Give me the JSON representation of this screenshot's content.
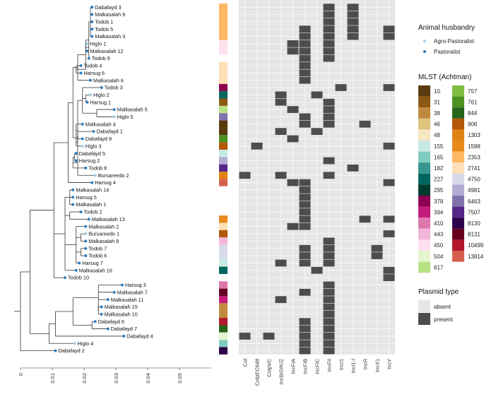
{
  "chart_data": {
    "type": "heatmap",
    "description_tree": "phylogenetic tree with tip labels",
    "tree_axis": {
      "ticks": [
        "0",
        "0.01",
        "0.02",
        "0.03",
        "0.04",
        "0.05"
      ],
      "range": [
        0,
        0.06
      ]
    },
    "taxa": [
      {
        "name": "Dabafayd 3",
        "group": "Pastoralist",
        "mlst": "2353",
        "x": 0.0225,
        "plasmids": [
          "IncFII",
          "IncI1-I"
        ]
      },
      {
        "name": "Malkasalah 9",
        "group": "Pastoralist",
        "mlst": "2353",
        "x": 0.0225,
        "plasmids": [
          "IncFII",
          "IncI1-I"
        ]
      },
      {
        "name": "Todob 1",
        "group": "Pastoralist",
        "mlst": "2353",
        "x": 0.0225,
        "plasmids": [
          "IncFII",
          "IncI1-I"
        ]
      },
      {
        "name": "Todob 5",
        "group": "Pastoralist",
        "mlst": "2353",
        "x": 0.0225,
        "plasmids": [
          "IncFIB",
          "IncFII",
          "IncI1-I",
          "IncY"
        ]
      },
      {
        "name": "Malkasalah 3",
        "group": "Pastoralist",
        "mlst": "2353",
        "x": 0.0225,
        "plasmids": [
          "IncFIB",
          "IncFII",
          "IncI1-I",
          "IncY"
        ]
      },
      {
        "name": "Higlo 1",
        "group": "Agro-Pastoralist",
        "mlst": "450",
        "x": 0.021,
        "plasmids": [
          "IncFIA",
          "IncFIB",
          "IncFII"
        ]
      },
      {
        "name": "Malkasalah 12",
        "group": "Pastoralist",
        "mlst": "450",
        "x": 0.021,
        "plasmids": [
          "IncFIA",
          "IncFIB",
          "IncFII"
        ]
      },
      {
        "name": "Todob 9",
        "group": "Pastoralist",
        "mlst": "",
        "x": 0.0215,
        "plasmids": [
          "IncFIB",
          "IncFII"
        ]
      },
      {
        "name": "Todob 4",
        "group": "Pastoralist",
        "mlst": "2741",
        "x": 0.019,
        "plasmids": [
          "IncFIB"
        ]
      },
      {
        "name": "Harsug 6",
        "group": "Pastoralist",
        "mlst": "2741",
        "x": 0.019,
        "plasmids": [
          "IncFIB"
        ]
      },
      {
        "name": "Malkasalah 6",
        "group": "Pastoralist",
        "mlst": "2741",
        "x": 0.022,
        "plasmids": [
          "IncFIB"
        ]
      },
      {
        "name": "Todob 3",
        "group": "Pastoralist",
        "mlst": "378",
        "x": 0.0255,
        "plasmids": [
          "IncI1",
          "IncY"
        ]
      },
      {
        "name": "Higlo 2",
        "group": "Agro-Pastoralist",
        "mlst": "227",
        "x": 0.022,
        "plasmids": [
          "IncB/O/K/Z",
          "IncFIC"
        ]
      },
      {
        "name": "Harsug 1",
        "group": "Pastoralist",
        "mlst": "31",
        "x": 0.021,
        "plasmids": [
          "IncB/O/K/Z",
          "IncFII"
        ]
      },
      {
        "name": "Malkasalah 5",
        "group": "Pastoralist",
        "mlst": "617",
        "x": 0.0295,
        "plasmids": [
          "IncFIA",
          "IncFII"
        ]
      },
      {
        "name": "Higlo 5",
        "group": "Agro-Pastoralist",
        "mlst": "6463",
        "x": 0.0295,
        "plasmids": [
          "IncFIB",
          "IncFII"
        ]
      },
      {
        "name": "Malkasalah 4",
        "group": "Pastoralist",
        "mlst": "10",
        "x": 0.0195,
        "plasmids": [
          "IncFIB",
          "IncFII",
          "IncR"
        ]
      },
      {
        "name": "Dabafayd 1",
        "group": "Pastoralist",
        "mlst": "10",
        "x": 0.023,
        "plasmids": [
          "IncB/O/K/Z",
          "IncFIC"
        ]
      },
      {
        "name": "Dabafayd 8",
        "group": "Pastoralist",
        "mlst": "761",
        "x": 0.0195,
        "plasmids": [
          "IncFIA"
        ]
      },
      {
        "name": "Higlo 3",
        "group": "Agro-Pastoralist",
        "mlst": "906",
        "x": 0.0195,
        "plasmids": [
          "ColpEC648",
          "IncY"
        ]
      },
      {
        "name": "Dabafayd 5",
        "group": "Pastoralist",
        "mlst": "155",
        "x": 0.0175,
        "plasmids": []
      },
      {
        "name": "Harsug 2",
        "group": "Pastoralist",
        "mlst": "4981",
        "x": 0.0175,
        "plasmids": [
          "IncFII"
        ]
      },
      {
        "name": "Todob 8",
        "group": "Pastoralist",
        "mlst": "7507",
        "x": 0.0205,
        "plasmids": [
          "IncI1-I"
        ]
      },
      {
        "name": "Bursareedo 2",
        "group": "Agro-Pastoralist",
        "mlst": "1303",
        "x": 0.0235,
        "plasmids": [
          "Col",
          "IncB/O/K/Z",
          "IncFII"
        ]
      },
      {
        "name": "Harsug 4",
        "group": "Pastoralist",
        "mlst": "13814",
        "x": 0.0225,
        "plasmids": [
          "IncFIA",
          "IncFIB",
          "IncY"
        ]
      },
      {
        "name": "Malkasalah 14",
        "group": "Pastoralist",
        "mlst": "",
        "x": 0.0165,
        "plasmids": [
          "IncFIB"
        ]
      },
      {
        "name": "Harsug 5",
        "group": "Pastoralist",
        "mlst": "",
        "x": 0.0165,
        "plasmids": [
          "IncFIB"
        ]
      },
      {
        "name": "Malkasalah 1",
        "group": "Pastoralist",
        "mlst": "",
        "x": 0.0165,
        "plasmids": [
          "IncFIB"
        ]
      },
      {
        "name": "Todob 2",
        "group": "Pastoralist",
        "mlst": "",
        "x": 0.019,
        "plasmids": [
          "IncFIB"
        ]
      },
      {
        "name": "Malkasalah 13",
        "group": "Pastoralist",
        "mlst": "1598",
        "x": 0.0215,
        "plasmids": [
          "IncFIB",
          "IncR",
          "IncY"
        ]
      },
      {
        "name": "Malkasalah 2",
        "group": "Pastoralist",
        "mlst": "2741",
        "x": 0.0205,
        "plasmids": [
          "IncFIA",
          "IncFIB"
        ]
      },
      {
        "name": "Bursareedo 1",
        "group": "Agro-Pastoralist",
        "mlst": "906",
        "x": 0.0205,
        "plasmids": [
          "IncY"
        ]
      },
      {
        "name": "Malkasalah 8",
        "group": "Pastoralist",
        "mlst": "443",
        "x": 0.0205,
        "plasmids": [
          "IncFII"
        ]
      },
      {
        "name": "Todob 7",
        "group": "Pastoralist",
        "mlst": "4750",
        "x": 0.0205,
        "plasmids": [
          "IncFIB",
          "IncFII",
          "IncX1"
        ]
      },
      {
        "name": "Todob 6",
        "group": "Pastoralist",
        "mlst": "4750",
        "x": 0.0205,
        "plasmids": [
          "IncFIB",
          "IncFII",
          "IncX1"
        ]
      },
      {
        "name": "Harsug 7",
        "group": "Pastoralist",
        "mlst": "155",
        "x": 0.0185,
        "plasmids": [
          "IncB/O/K/Z",
          "IncFIB",
          "IncFII"
        ]
      },
      {
        "name": "Malkasalah 16",
        "group": "Pastoralist",
        "mlst": "227",
        "x": 0.0175,
        "plasmids": [
          "IncFIC",
          "IncY"
        ]
      },
      {
        "name": "Todob 10",
        "group": "Pastoralist",
        "mlst": "",
        "x": 0.014,
        "plasmids": [
          "IncY"
        ]
      },
      {
        "name": "Harsug 3",
        "group": "Pastoralist",
        "mlst": "410",
        "x": 0.032,
        "plasmids": [
          "IncFII"
        ]
      },
      {
        "name": "Malkasalah 7",
        "group": "Pastoralist",
        "mlst": "8131",
        "x": 0.0295,
        "plasmids": [
          "IncFIB",
          "IncFII"
        ]
      },
      {
        "name": "Malkasalah 11",
        "group": "Pastoralist",
        "mlst": "394",
        "x": 0.0275,
        "plasmids": [
          "IncB/O/K/Z",
          "IncFII"
        ]
      },
      {
        "name": "Malkasalah 15",
        "group": "Pastoralist",
        "mlst": "38",
        "x": 0.0255,
        "plasmids": [
          "IncFII"
        ]
      },
      {
        "name": "Malkasalah 10",
        "group": "Pastoralist",
        "mlst": "38",
        "x": 0.0255,
        "plasmids": [
          "IncFII"
        ]
      },
      {
        "name": "Dabafayd 6",
        "group": "Pastoralist",
        "mlst": "10499",
        "x": 0.0235,
        "plasmids": [
          "IncFIB",
          "IncFII"
        ]
      },
      {
        "name": "Dabafayd 7",
        "group": "Pastoralist",
        "mlst": "844",
        "x": 0.0275,
        "plasmids": [
          "IncFIB",
          "IncFII"
        ]
      },
      {
        "name": "Dabafayd 4",
        "group": "Pastoralist",
        "mlst": "504",
        "x": 0.0325,
        "plasmids": [
          "Col",
          "ColpVC",
          "IncFIB",
          "IncFII"
        ]
      },
      {
        "name": "Higlo 4",
        "group": "Agro-Pastoralist",
        "mlst": "165",
        "x": 0.017,
        "plasmids": [
          "IncFIB",
          "IncFII"
        ]
      },
      {
        "name": "Dabafayd 2",
        "group": "Pastoralist",
        "mlst": "8130",
        "x": 0.011,
        "plasmids": [
          "IncFIB",
          "IncFII"
        ]
      }
    ],
    "plasmid_types": [
      "Col",
      "ColpEC648",
      "ColpVC",
      "IncB/O/K/Z",
      "IncFIA",
      "IncFIB",
      "IncFIC",
      "IncFII",
      "IncI1",
      "IncI1-I",
      "IncR",
      "IncX1",
      "IncY"
    ],
    "legend_husbandry": {
      "title": "Animal husbandry",
      "entries": [
        {
          "label": "Agro-Pastoralist",
          "color": "#a6cee3"
        },
        {
          "label": "Pastoralist",
          "color": "#2f7fc1"
        }
      ]
    },
    "legend_mlst": {
      "title": "MLST (Achtman)",
      "left": [
        {
          "st": "10",
          "color": "#5a3a0e"
        },
        {
          "st": "31",
          "color": "#8b5a14"
        },
        {
          "st": "38",
          "color": "#c08a3e"
        },
        {
          "st": "46",
          "color": "#dfc27d"
        },
        {
          "st": "48",
          "color": "#f6e8c3"
        },
        {
          "st": "155",
          "color": "#c7eae5"
        },
        {
          "st": "165",
          "color": "#80cdc1"
        },
        {
          "st": "182",
          "color": "#35978f"
        },
        {
          "st": "227",
          "color": "#01665e"
        },
        {
          "st": "295",
          "color": "#003c30"
        },
        {
          "st": "378",
          "color": "#8e0152"
        },
        {
          "st": "394",
          "color": "#c51b7d"
        },
        {
          "st": "410",
          "color": "#de77ae"
        },
        {
          "st": "443",
          "color": "#f1b6da"
        },
        {
          "st": "450",
          "color": "#fde0ef"
        },
        {
          "st": "504",
          "color": "#e6f5d0"
        },
        {
          "st": "617",
          "color": "#b8e186"
        }
      ],
      "right": [
        {
          "st": "757",
          "color": "#7fbc41"
        },
        {
          "st": "761",
          "color": "#4d9221"
        },
        {
          "st": "844",
          "color": "#276419"
        },
        {
          "st": "906",
          "color": "#b35806"
        },
        {
          "st": "1303",
          "color": "#e08214"
        },
        {
          "st": "1598",
          "color": "#e8891c"
        },
        {
          "st": "2353",
          "color": "#fdb863"
        },
        {
          "st": "2741",
          "color": "#fee0b6"
        },
        {
          "st": "4750",
          "color": "#d8daeb"
        },
        {
          "st": "4981",
          "color": "#b2abd2"
        },
        {
          "st": "6463",
          "color": "#8073ac"
        },
        {
          "st": "7507",
          "color": "#542788"
        },
        {
          "st": "8130",
          "color": "#2d004b"
        },
        {
          "st": "8131",
          "color": "#67001f"
        },
        {
          "st": "10499",
          "color": "#b2182b"
        },
        {
          "st": "13814",
          "color": "#d6604d"
        }
      ]
    },
    "legend_plasmid": {
      "title": "Plasmid type",
      "entries": [
        {
          "label": "absent",
          "color": "#e6e6e6"
        },
        {
          "label": "present",
          "color": "#4d4d4d"
        }
      ]
    }
  }
}
